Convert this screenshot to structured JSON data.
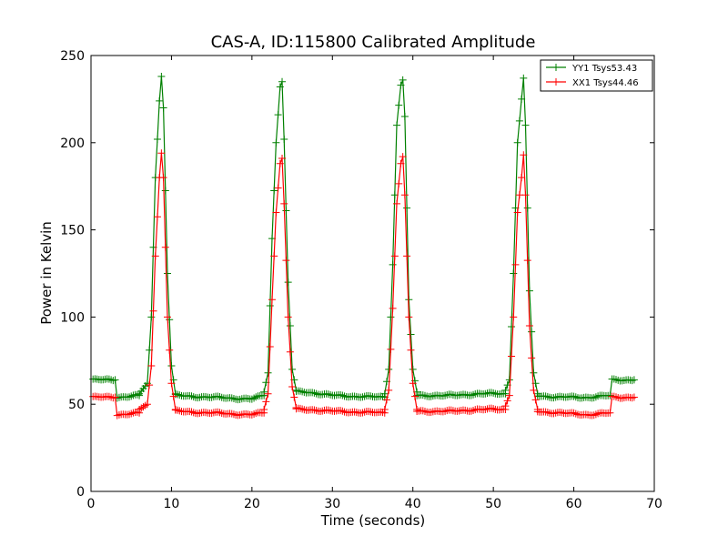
{
  "chart_data": {
    "type": "line",
    "title": "CAS-A, ID:115800 Calibrated Amplitude",
    "xlabel": "Time (seconds)",
    "ylabel": "Power in Kelvin",
    "xlim": [
      0,
      70
    ],
    "ylim": [
      0,
      250
    ],
    "xticks": [
      0,
      10,
      20,
      30,
      40,
      50,
      60,
      70
    ],
    "yticks": [
      0,
      50,
      100,
      150,
      200,
      250
    ],
    "grid": false,
    "legend_position": "top-right",
    "marker": "+",
    "sample_interval_s": 0.25,
    "series": [
      {
        "name": "YY1 Tsys53.43",
        "color": "#008000",
        "x_start": 0.25,
        "x_end": 67.5,
        "segments": [
          {
            "x": [
              0.25,
              3.0
            ],
            "y": [
              64,
              64
            ]
          },
          {
            "x": [
              3.25,
              6.0
            ],
            "y": [
              54,
              55
            ]
          },
          {
            "x": [
              6.0,
              7.0,
              7.5,
              8.0,
              8.5,
              8.75,
              9.0,
              9.5,
              10.0,
              10.5
            ],
            "y": [
              56,
              62,
              100,
              180,
              224,
              238,
              220,
              125,
              72,
              56
            ]
          },
          {
            "x": [
              10.5,
              15.0,
              20.0,
              21.5
            ],
            "y": [
              55,
              54,
              53,
              55
            ]
          },
          {
            "x": [
              21.5,
              22.0,
              22.5,
              23.0,
              23.5,
              23.75,
              24.0,
              24.5,
              25.0,
              25.5
            ],
            "y": [
              57,
              68,
              145,
              200,
              232,
              235,
              202,
              120,
              70,
              58
            ]
          },
          {
            "x": [
              25.5,
              27.0,
              30.0,
              36.5
            ],
            "y": [
              57,
              57,
              55,
              54
            ]
          },
          {
            "x": [
              36.5,
              37.0,
              37.5,
              38.0,
              38.5,
              38.75,
              39.0,
              39.5,
              40.0,
              40.5
            ],
            "y": [
              56,
              70,
              130,
              210,
              233,
              236,
              215,
              110,
              70,
              57
            ]
          },
          {
            "x": [
              40.5,
              45.0,
              48.0,
              51.5
            ],
            "y": [
              55,
              55,
              56,
              56
            ]
          },
          {
            "x": [
              51.5,
              52.0,
              52.5,
              53.0,
              53.5,
              53.75,
              54.0,
              54.5,
              55.0,
              55.5
            ],
            "y": [
              58,
              64,
              125,
              200,
              225,
              237,
              210,
              115,
              68,
              56
            ]
          },
          {
            "x": [
              55.5,
              58.0,
              62.0,
              64.5
            ],
            "y": [
              55,
              54,
              54,
              55
            ]
          },
          {
            "x": [
              64.75,
              67.5
            ],
            "y": [
              64,
              64
            ]
          }
        ]
      },
      {
        "name": "XX1 Tsys44.46",
        "color": "#ff0000",
        "x_start": 0.25,
        "x_end": 67.5,
        "segments": [
          {
            "x": [
              0.25,
              3.0
            ],
            "y": [
              54,
              54
            ]
          },
          {
            "x": [
              3.25,
              6.0
            ],
            "y": [
              44,
              45
            ]
          },
          {
            "x": [
              6.0,
              7.0,
              7.5,
              8.0,
              8.5,
              8.75,
              9.0,
              9.5,
              10.0,
              10.5
            ],
            "y": [
              47,
              50,
              72,
              135,
              180,
              194,
              180,
              100,
              62,
              47
            ]
          },
          {
            "x": [
              10.5,
              15.0,
              20.0,
              21.5
            ],
            "y": [
              46,
              45,
              44,
              45
            ]
          },
          {
            "x": [
              21.5,
              22.0,
              22.5,
              23.0,
              23.5,
              23.75,
              24.0,
              24.5,
              25.0,
              25.5
            ],
            "y": [
              47,
              56,
              110,
              160,
              188,
              191,
              165,
              100,
              60,
              48
            ]
          },
          {
            "x": [
              25.5,
              27.0,
              30.0,
              36.5
            ],
            "y": [
              47,
              47,
              46,
              45
            ]
          },
          {
            "x": [
              36.5,
              37.0,
              37.5,
              38.0,
              38.5,
              38.75,
              39.0,
              39.5,
              40.0,
              40.5
            ],
            "y": [
              47,
              58,
              105,
              165,
              188,
              192,
              170,
              100,
              62,
              47
            ]
          },
          {
            "x": [
              40.5,
              45.0,
              48.0,
              51.5
            ],
            "y": [
              46,
              46,
              47,
              47
            ]
          },
          {
            "x": [
              51.5,
              52.0,
              52.5,
              53.0,
              53.5,
              53.75,
              54.0,
              54.5,
              55.0,
              55.5
            ],
            "y": [
              49,
              55,
              100,
              160,
              180,
              193,
              170,
              95,
              58,
              47
            ]
          },
          {
            "x": [
              55.5,
              58.0,
              62.0,
              64.5
            ],
            "y": [
              46,
              45,
              44,
              45
            ]
          },
          {
            "x": [
              64.75,
              67.5
            ],
            "y": [
              54,
              54
            ]
          }
        ]
      }
    ]
  }
}
